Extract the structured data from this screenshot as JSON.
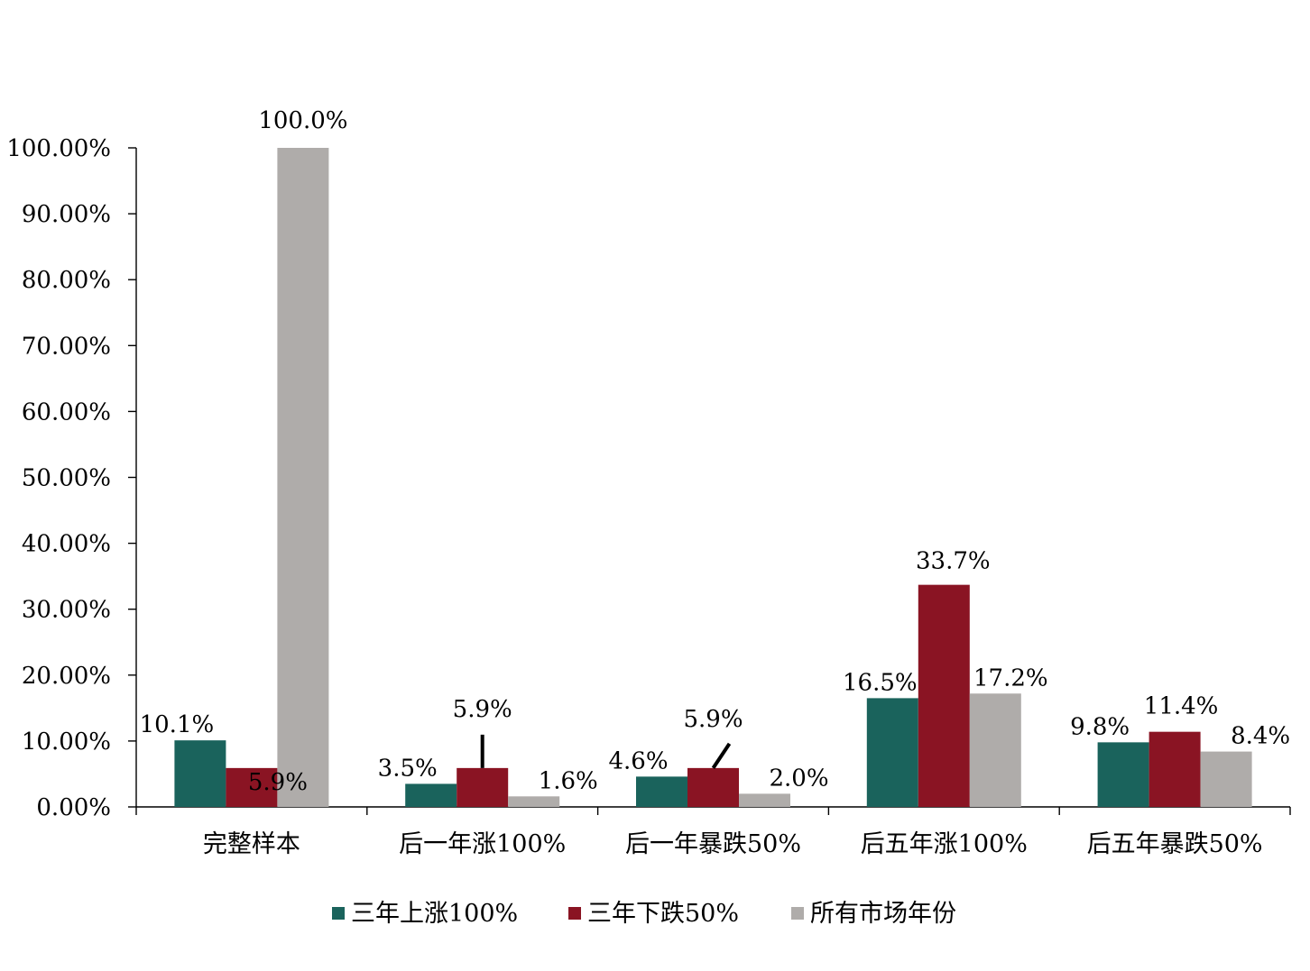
{
  "chart_data": {
    "type": "bar",
    "title": "",
    "xlabel": "",
    "ylabel": "",
    "ylim": [
      0,
      100
    ],
    "yticks": [
      0,
      10,
      20,
      30,
      40,
      50,
      60,
      70,
      80,
      90,
      100
    ],
    "ytick_labels": [
      "0.00%",
      "10.00%",
      "20.00%",
      "30.00%",
      "40.00%",
      "50.00%",
      "60.00%",
      "70.00%",
      "80.00%",
      "90.00%",
      "100.00%"
    ],
    "categories": [
      "完整样本",
      "后一年涨100%",
      "后一年暴跌50%",
      "后五年涨100%",
      "后五年暴跌50%"
    ],
    "series": [
      {
        "name": "三年上涨100%",
        "color": "#1a635c",
        "values": [
          10.1,
          3.5,
          4.6,
          16.5,
          9.8
        ],
        "labels": [
          "10.1%",
          "3.5%",
          "4.6%",
          "16.5%",
          "9.8%"
        ]
      },
      {
        "name": "三年下跌50%",
        "color": "#8a1423",
        "values": [
          5.9,
          5.9,
          5.9,
          33.7,
          11.4
        ],
        "labels": [
          "5.9%",
          "5.9%",
          "5.9%",
          "33.7%",
          "11.4%"
        ]
      },
      {
        "name": "所有市场年份",
        "color": "#afacaa",
        "values": [
          100.0,
          1.6,
          2.0,
          17.2,
          8.4
        ],
        "labels": [
          "100.0%",
          "1.6%",
          "2.0%",
          "17.2%",
          "8.4%"
        ]
      }
    ],
    "grid": false,
    "legend_position": "bottom"
  }
}
